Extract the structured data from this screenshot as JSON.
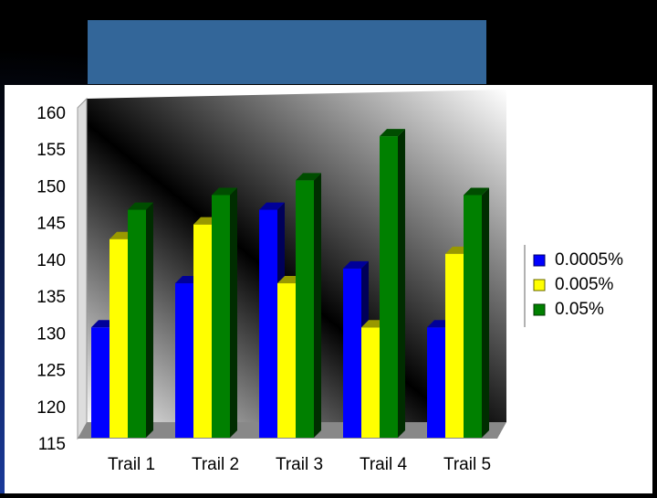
{
  "chart_data": {
    "type": "bar3d",
    "categories": [
      "Trail 1",
      "Trail 2",
      "Trail 3",
      "Trail 4",
      "Trail 5"
    ],
    "series": [
      {
        "name": "0.0005%",
        "color": "#0000ff",
        "values": [
          131,
          137,
          147,
          139,
          131
        ]
      },
      {
        "name": "0.005%",
        "color": "#ffff00",
        "values": [
          143,
          145,
          137,
          131,
          141
        ]
      },
      {
        "name": "0.05%",
        "color": "#008000",
        "values": [
          147,
          149,
          151,
          157,
          149
        ]
      }
    ],
    "ylim": [
      115,
      160
    ],
    "yticks": [
      115,
      120,
      125,
      130,
      135,
      140,
      145,
      150,
      155,
      160
    ],
    "grid": false,
    "legend": "right"
  }
}
